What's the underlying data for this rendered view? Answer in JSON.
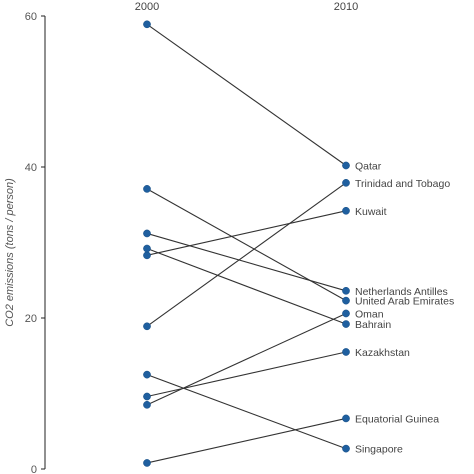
{
  "chart_data": {
    "type": "slope",
    "title": "",
    "ylabel": "CO2 emissions (tons / person)",
    "ylim": [
      0,
      60
    ],
    "yticks": [
      "0",
      "20",
      "40",
      "60"
    ],
    "columns": [
      "2000",
      "2010"
    ],
    "series": [
      {
        "name": "Qatar",
        "values": [
          58.9,
          40.2
        ]
      },
      {
        "name": "Trinidad and Tobago",
        "values": [
          18.9,
          37.9
        ]
      },
      {
        "name": "Kuwait",
        "values": [
          28.3,
          34.2
        ]
      },
      {
        "name": "Netherlands Antilles",
        "values": [
          31.2,
          23.6
        ]
      },
      {
        "name": "United Arab Emirates",
        "values": [
          37.1,
          22.3
        ]
      },
      {
        "name": "Oman",
        "values": [
          8.5,
          20.6
        ]
      },
      {
        "name": "Bahrain",
        "values": [
          29.2,
          19.2
        ]
      },
      {
        "name": "Kazakhstan",
        "values": [
          9.6,
          15.5
        ]
      },
      {
        "name": "Equatorial Guinea",
        "values": [
          0.8,
          6.7
        ]
      },
      {
        "name": "Singapore",
        "values": [
          12.5,
          2.7
        ]
      }
    ]
  }
}
